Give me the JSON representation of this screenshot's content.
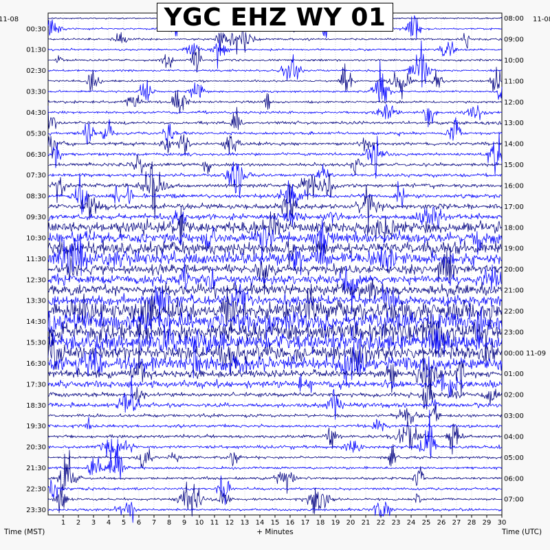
{
  "chart_data": {
    "type": "line",
    "title": "YGC EHZ WY 01",
    "start_date_left": "11-08",
    "start_date_right": "11-08",
    "rollover_label": "00:00 11-09",
    "xlabel": "+ Minutes",
    "xlim": [
      0,
      30
    ],
    "x_ticks": [
      "1",
      "2",
      "3",
      "4",
      "5",
      "6",
      "7",
      "8",
      "9",
      "10",
      "11",
      "12",
      "13",
      "14",
      "15",
      "16",
      "17",
      "18",
      "19",
      "20",
      "21",
      "22",
      "23",
      "24",
      "25",
      "26",
      "27",
      "28",
      "29",
      "30"
    ],
    "left_axis_label": "Time (MST)",
    "right_axis_label": "Time (UTC)",
    "left_ticks": [
      "00:30",
      "01:30",
      "02:30",
      "03:30",
      "04:30",
      "05:30",
      "06:30",
      "07:30",
      "08:30",
      "09:30",
      "10:30",
      "11:30",
      "12:30",
      "13:30",
      "14:30",
      "15:30",
      "16:30",
      "17:30",
      "18:30",
      "19:30",
      "20:30",
      "21:30",
      "22:30",
      "23:30"
    ],
    "right_ticks": [
      "08:00",
      "09:00",
      "10:00",
      "11:00",
      "12:00",
      "13:00",
      "14:00",
      "15:00",
      "16:00",
      "17:00",
      "18:00",
      "19:00",
      "20:00",
      "21:00",
      "22:00",
      "23:00",
      "00:00 11-09",
      "01:00",
      "02:00",
      "03:00",
      "04:00",
      "05:00",
      "06:00",
      "07:00"
    ],
    "trace_colors": [
      "#000080",
      "#0000ff"
    ],
    "rows_per_hour": 2,
    "row_count": 48,
    "grid": true,
    "noise_level_by_hour": [
      0.08,
      0.1,
      0.1,
      0.1,
      0.12,
      0.14,
      0.15,
      0.16,
      0.2,
      0.25,
      0.5,
      0.6,
      0.45,
      0.5,
      0.9,
      0.9,
      0.7,
      0.35,
      0.2,
      0.15,
      0.15,
      0.12,
      0.12,
      0.12
    ]
  }
}
